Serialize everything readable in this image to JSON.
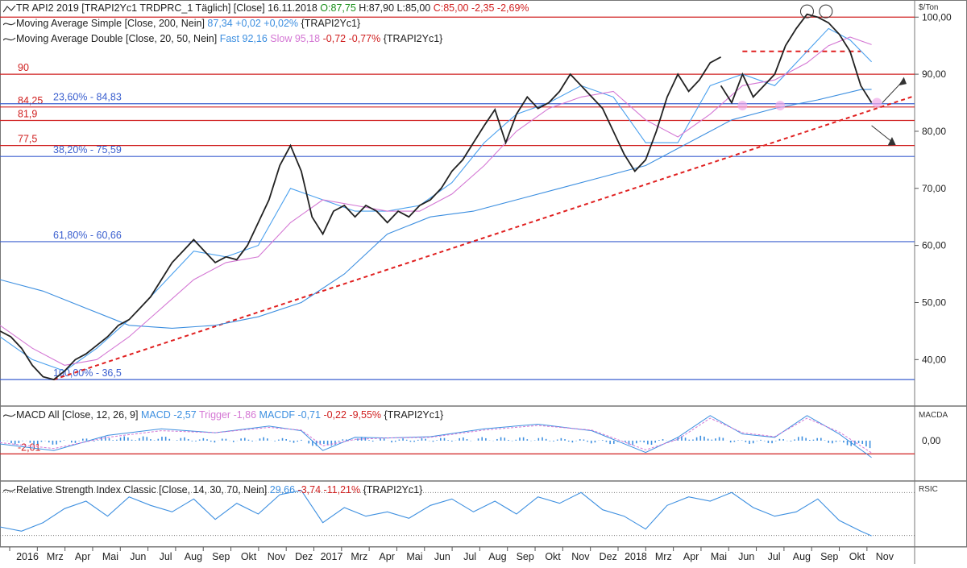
{
  "header": {
    "main": {
      "title": "TR API2 2019 [TRAPI2Yc1 TRDPRC_1 Täglich] [Close] 16.11.2018",
      "open": "O:87,75",
      "hl": "H:87,90 L:85,00",
      "close": "C:85,00 -2,35 -2,69%"
    },
    "sma": {
      "label": "Moving Average Simple [Close, 200, Nein]",
      "value": "87,34 +0,02 +0,02%",
      "ric": "{TRAPI2Yc1}"
    },
    "mad": {
      "label": "Moving Average Double [Close, 20, 50, Nein]",
      "fast": "Fast 92,16",
      "slow": "Slow 95,18",
      "change": "-0,72 -0,77%",
      "ric": "{TRAPI2Yc1}"
    },
    "macd": {
      "label": "MACD All [Close, 12, 26, 9]",
      "macd": "MACD -2,57",
      "trigger": "Trigger -1,86",
      "macdf": "MACDF -0,71",
      "change": "-0,22 -9,55%",
      "ric": "{TRAPI2Yc1}"
    },
    "rsi": {
      "label": "Relative Strength Index Classic [Close, 14, 30, 70, Nein]",
      "value": "29,66",
      "change": "-3,74 -11,21%",
      "ric": "{TRAPI2Yc1}"
    }
  },
  "chart_data": [
    {
      "type": "line",
      "panel": "price",
      "unit": "$/Ton",
      "ylim": [
        32,
        103
      ],
      "y_ticks": [
        40,
        50,
        60,
        70,
        80,
        90,
        100
      ],
      "y_tick_labels": [
        "40,00",
        "50,00",
        "60,00",
        "70,00",
        "80,00",
        "90,00",
        "100,00"
      ],
      "x_ticks": [
        "2016",
        "Mrz",
        "Apr",
        "Mai",
        "Jun",
        "Jul",
        "Aug",
        "Sep",
        "Okt",
        "Nov",
        "Dez",
        "2017",
        "Mrz",
        "Apr",
        "Mai",
        "Jun",
        "Jul",
        "Aug",
        "Sep",
        "Okt",
        "Nov",
        "Dez",
        "2018",
        "Mrz",
        "Apr",
        "Mai",
        "Jun",
        "Jul",
        "Aug",
        "Sep",
        "Okt",
        "Nov"
      ],
      "series": [
        {
          "name": "Close",
          "color": "#222222",
          "t": [
            0,
            2,
            4,
            6,
            8,
            10,
            12,
            14,
            16,
            18,
            20,
            22,
            24,
            26,
            28,
            30,
            32,
            34,
            36,
            38,
            40,
            42,
            44,
            46,
            48,
            50,
            52,
            54,
            56,
            58,
            60,
            62,
            64,
            66,
            68,
            70,
            72,
            74,
            76,
            78,
            80,
            82,
            84,
            86,
            88,
            90,
            92,
            94,
            96,
            98,
            100,
            102,
            104,
            106,
            108,
            110,
            112,
            114,
            116,
            118,
            120,
            122,
            124,
            126,
            128,
            130,
            132,
            134
          ],
          "values": [
            45,
            44,
            42,
            39,
            37,
            36.5,
            38,
            40,
            41,
            42.5,
            44,
            46,
            47,
            49,
            51,
            54,
            57,
            59,
            61,
            59,
            57,
            58,
            57.5,
            60,
            64,
            68,
            74,
            77.5,
            73,
            65,
            62,
            66,
            67,
            65,
            67,
            66,
            64,
            66,
            65,
            67,
            68,
            70,
            73,
            75,
            78,
            81,
            83.8,
            78,
            83,
            86,
            84,
            85,
            87,
            90,
            88,
            86,
            84,
            80,
            76,
            73,
            75,
            80,
            86,
            90,
            87,
            89,
            92,
            93
          ]
        },
        {
          "name": "Close (late)",
          "color": "#222222",
          "t": [
            134,
            136,
            138,
            140,
            142,
            144,
            146,
            148,
            150,
            152,
            154,
            156,
            158,
            160,
            162
          ],
          "values": [
            88,
            85,
            90,
            86,
            88,
            90,
            95,
            98,
            100.5,
            100,
            99,
            97,
            94,
            88,
            85
          ]
        },
        {
          "name": "Moving Average Simple",
          "color": "#3d8fe0",
          "t": [
            0,
            8,
            16,
            24,
            32,
            40,
            48,
            56,
            64,
            72,
            80,
            88,
            96,
            104,
            112,
            120,
            128,
            136,
            144,
            152,
            160,
            162
          ],
          "values": [
            54,
            52,
            49,
            46,
            45.5,
            46,
            47.5,
            50,
            55,
            62,
            65,
            66,
            68,
            70,
            72,
            74,
            78,
            82,
            84,
            85.5,
            87.3,
            87.34
          ]
        },
        {
          "name": "Fast",
          "color": "#4aa0ee",
          "t": [
            0,
            6,
            12,
            18,
            24,
            30,
            36,
            42,
            48,
            54,
            60,
            66,
            72,
            78,
            84,
            90,
            96,
            102,
            108,
            114,
            120,
            126,
            132,
            138,
            144,
            150,
            154,
            158,
            162
          ],
          "values": [
            44,
            40,
            38,
            42,
            47,
            53,
            59,
            58,
            60,
            70,
            68,
            66,
            66,
            67,
            71,
            78,
            83,
            85,
            88,
            86,
            78,
            78,
            88,
            90,
            88,
            94,
            98,
            96,
            92.16
          ]
        },
        {
          "name": "Slow",
          "color": "#d477d4",
          "t": [
            0,
            6,
            12,
            18,
            24,
            30,
            36,
            42,
            48,
            54,
            60,
            66,
            72,
            78,
            84,
            90,
            96,
            102,
            108,
            114,
            120,
            126,
            132,
            138,
            144,
            150,
            154,
            158,
            162
          ],
          "values": [
            46,
            42,
            39,
            40,
            44,
            49,
            54,
            57,
            58,
            64,
            68,
            67,
            66,
            66,
            69,
            74,
            80,
            84,
            86,
            87,
            82,
            79,
            83,
            88,
            89,
            92,
            95,
            96.5,
            95.18
          ]
        }
      ],
      "horizontal_levels": [
        {
          "value": 100,
          "label": "",
          "color": "#d02020"
        },
        {
          "value": 90,
          "label": "90",
          "color": "#d02020"
        },
        {
          "value": 84.25,
          "label": "84,25",
          "color": "#d02020"
        },
        {
          "value": 84.83,
          "label": "23,60% - 84,83",
          "color": "#3a5fcf"
        },
        {
          "value": 81.9,
          "label": "81,9",
          "color": "#d02020"
        },
        {
          "value": 77.5,
          "label": "77,5",
          "color": "#d02020"
        },
        {
          "value": 75.59,
          "label": "38,20% - 75,59",
          "color": "#3a5fcf"
        },
        {
          "value": 60.66,
          "label": "61,80% - 60,66",
          "color": "#3a5fcf"
        },
        {
          "value": 36.5,
          "label": "100,00% - 36,5",
          "color": "#3a5fcf"
        }
      ],
      "trendline": {
        "from": [
          10,
          36.5
        ],
        "to": [
          170,
          86.2
        ],
        "color": "#e02020",
        "style": "dashed"
      },
      "resistance_segment": {
        "from": [
          138,
          94
        ],
        "to": [
          160,
          94
        ],
        "color": "#e02020",
        "style": "dashed"
      }
    },
    {
      "type": "line",
      "panel": "macd",
      "unit": "MACDA",
      "ylim": [
        -6,
        5
      ],
      "y_ticks": [
        0
      ],
      "y_tick_labels": [
        "0,00"
      ],
      "levels": [
        {
          "value": -2.01,
          "label": "-2,01",
          "color": "#d02020"
        }
      ],
      "series": [
        {
          "name": "MACD",
          "color": "#3d8fe0",
          "t": [
            0,
            10,
            20,
            30,
            40,
            50,
            56,
            60,
            66,
            72,
            80,
            90,
            100,
            110,
            120,
            126,
            132,
            138,
            144,
            150,
            156,
            162
          ],
          "values": [
            -0.5,
            -1.5,
            0.8,
            1.8,
            1.2,
            2.2,
            1.5,
            -1.5,
            0.5,
            0.4,
            0.6,
            1.8,
            2.5,
            1.5,
            -1.8,
            0.5,
            3.8,
            1.0,
            0.5,
            3.8,
            1.0,
            -2.57
          ]
        },
        {
          "name": "Trigger",
          "color": "#d477d4",
          "t": [
            0,
            10,
            20,
            30,
            40,
            50,
            56,
            60,
            66,
            72,
            80,
            90,
            100,
            110,
            120,
            126,
            132,
            138,
            144,
            150,
            156,
            162
          ],
          "values": [
            -0.3,
            -1.2,
            0.5,
            1.5,
            1.2,
            2.0,
            1.6,
            -0.8,
            0.2,
            0.4,
            0.5,
            1.6,
            2.3,
            1.6,
            -1.4,
            0.2,
            3.4,
            1.2,
            0.6,
            3.4,
            1.3,
            -1.86
          ]
        }
      ]
    },
    {
      "type": "line",
      "panel": "rsi",
      "unit": "RSIC",
      "ylim": [
        20,
        80
      ],
      "levels": [
        {
          "value": 70,
          "label": ""
        },
        {
          "value": 30,
          "label": ""
        }
      ],
      "series": [
        {
          "name": "RSI",
          "color": "#3d8fe0",
          "t": [
            0,
            4,
            8,
            12,
            16,
            20,
            24,
            28,
            32,
            36,
            40,
            44,
            48,
            52,
            56,
            60,
            64,
            68,
            72,
            76,
            80,
            84,
            88,
            92,
            96,
            100,
            104,
            108,
            112,
            116,
            120,
            124,
            128,
            132,
            136,
            140,
            144,
            148,
            152,
            156,
            160,
            162
          ],
          "values": [
            38,
            34,
            42,
            55,
            62,
            48,
            66,
            58,
            52,
            64,
            45,
            60,
            50,
            68,
            72,
            42,
            56,
            48,
            52,
            46,
            58,
            64,
            52,
            62,
            50,
            66,
            60,
            70,
            54,
            48,
            36,
            58,
            66,
            62,
            70,
            56,
            48,
            52,
            64,
            44,
            34,
            29.66
          ]
        }
      ]
    }
  ]
}
